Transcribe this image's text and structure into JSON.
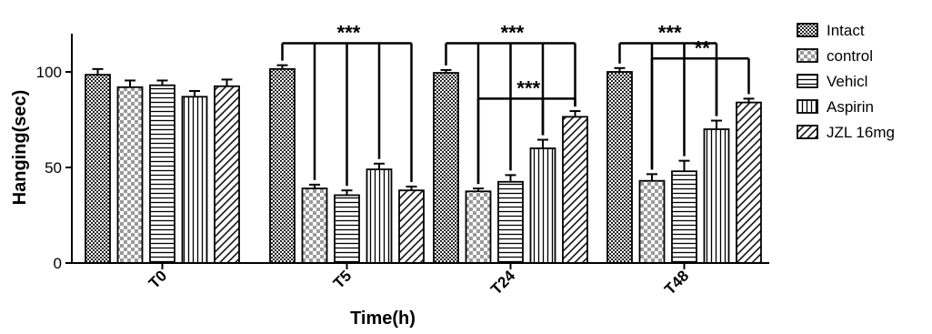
{
  "chart_data": {
    "type": "bar",
    "xlabel": "Time(h)",
    "ylabel": "Hanging(sec)",
    "ylim": [
      0,
      120
    ],
    "yticks": [
      0,
      50,
      100
    ],
    "categories": [
      "T0",
      "T5",
      "T24",
      "T48"
    ],
    "legend_position": "right",
    "grid": false,
    "series": [
      {
        "name": "Intact",
        "pattern": "checker-dark",
        "values": [
          98.5,
          101.5,
          99.5,
          100.0
        ],
        "errors": [
          3.0,
          2.0,
          1.5,
          2.0
        ]
      },
      {
        "name": "control",
        "pattern": "checker-light",
        "values": [
          92.0,
          39.0,
          37.5,
          43.0
        ],
        "errors": [
          3.5,
          2.0,
          1.5,
          3.5
        ]
      },
      {
        "name": "Vehicl",
        "pattern": "hlines",
        "values": [
          93.0,
          35.5,
          42.5,
          48.0
        ],
        "errors": [
          2.5,
          2.5,
          3.5,
          5.5
        ]
      },
      {
        "name": "Aspirin",
        "pattern": "vlines",
        "values": [
          87.0,
          49.0,
          60.0,
          70.0
        ],
        "errors": [
          3.0,
          3.0,
          4.5,
          4.5
        ]
      },
      {
        "name": "JZL 16mg",
        "pattern": "diag",
        "values": [
          92.5,
          38.0,
          76.5,
          84.0
        ],
        "errors": [
          3.5,
          2.0,
          3.0,
          2.0
        ]
      }
    ],
    "significance": [
      {
        "group": 1,
        "label": "***",
        "level": 115,
        "from": 0,
        "to": [
          1,
          2,
          3,
          4
        ]
      },
      {
        "group": 2,
        "label": "***",
        "level": 115,
        "from": 0,
        "to": [
          1,
          2,
          3,
          4
        ]
      },
      {
        "group": 2,
        "label": "***",
        "level": 86,
        "from": 1,
        "to": [
          3,
          4
        ]
      },
      {
        "group": 3,
        "label": "***",
        "level": 115,
        "from": 0,
        "to": [
          1,
          2,
          3
        ]
      },
      {
        "group": 3,
        "label": "**",
        "level": 107,
        "from": 1,
        "to": [
          3,
          4
        ]
      }
    ]
  }
}
